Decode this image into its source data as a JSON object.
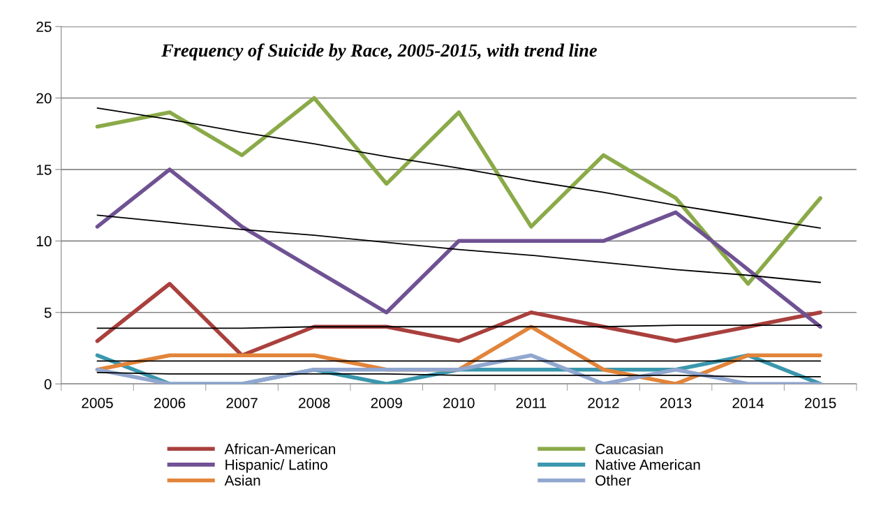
{
  "chart_data": {
    "type": "line",
    "title": "Frequency of Suicide by Race, 2005-2015, with trend line",
    "categories": [
      "2005",
      "2006",
      "2007",
      "2008",
      "2009",
      "2010",
      "2011",
      "2012",
      "2013",
      "2014",
      "2015"
    ],
    "series": [
      {
        "name": "African-American",
        "color": "#a9403d",
        "values": [
          3,
          7,
          2,
          4,
          4,
          3,
          5,
          4,
          3,
          4,
          5
        ]
      },
      {
        "name": "Caucasian",
        "color": "#8aaa48",
        "values": [
          18,
          19,
          16,
          20,
          14,
          19,
          11,
          16,
          13,
          7,
          13
        ]
      },
      {
        "name": "Hispanic/ Latino",
        "color": "#6f5293",
        "values": [
          11,
          15,
          11,
          8,
          5,
          10,
          10,
          10,
          12,
          8,
          4
        ]
      },
      {
        "name": "Native American",
        "color": "#3a97ad",
        "values": [
          2,
          0,
          0,
          1,
          0,
          1,
          1,
          1,
          1,
          2,
          0
        ]
      },
      {
        "name": "Asian",
        "color": "#e2843a",
        "values": [
          1,
          2,
          2,
          2,
          1,
          1,
          4,
          1,
          0,
          2,
          2
        ]
      },
      {
        "name": "Other",
        "color": "#91a7cf",
        "values": [
          1,
          0,
          0,
          1,
          1,
          1,
          2,
          0,
          1,
          0,
          0
        ]
      },
      {
        "type": "line",
        "color": "#000000",
        "values": [
          19.3,
          18.5,
          17.6,
          16.8,
          15.9,
          15.1,
          14.2,
          13.4,
          12.5,
          11.7,
          10.9
        ]
      },
      {
        "type": "line",
        "color": "#000000",
        "values": [
          11.8,
          11.3,
          10.8,
          10.4,
          9.9,
          9.4,
          9.0,
          8.5,
          8.0,
          7.6,
          7.1
        ]
      },
      {
        "type": "line",
        "color": "#000000",
        "values": [
          3.9,
          3.9,
          3.9,
          4.0,
          4.0,
          4.0,
          4.0,
          4.0,
          4.1,
          4.1,
          4.1
        ]
      },
      {
        "type": "line",
        "color": "#000000",
        "values": [
          1.6,
          1.6,
          1.6,
          1.6,
          1.6,
          1.6,
          1.6,
          1.6,
          1.6,
          1.6,
          1.6
        ]
      },
      {
        "type": "line",
        "color": "#000000",
        "values": [
          0.8,
          0.7,
          0.7,
          0.7,
          0.7,
          0.6,
          0.6,
          0.6,
          0.6,
          0.5,
          0.5
        ]
      }
    ],
    "ylim": [
      0,
      25
    ],
    "yticks": [
      0,
      5,
      10,
      15,
      20,
      25
    ],
    "grid": "y",
    "legend": "bottom",
    "marker": "none",
    "line_style": "solid"
  }
}
